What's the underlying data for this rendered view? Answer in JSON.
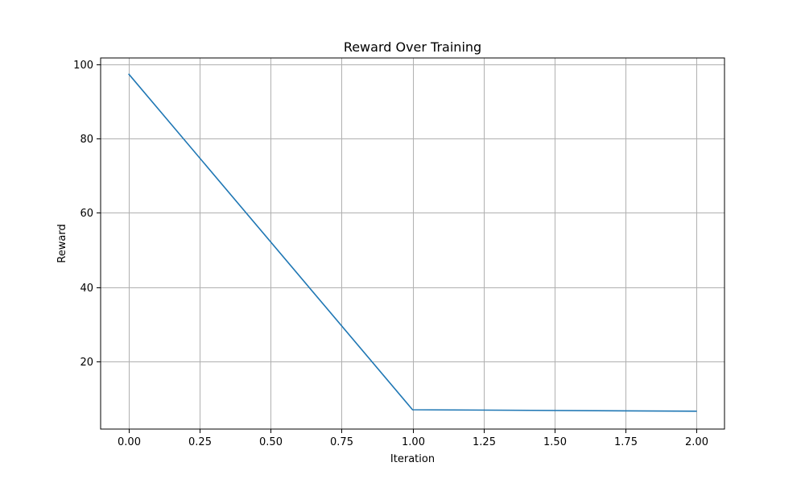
{
  "chart_data": {
    "type": "line",
    "title": "Reward Over Training",
    "xlabel": "Iteration",
    "ylabel": "Reward",
    "x": [
      0,
      1,
      2
    ],
    "series": [
      {
        "values": [
          97.3,
          7.0,
          6.6
        ],
        "color": "#1f77b4"
      }
    ],
    "xlim": [
      -0.1,
      2.1
    ],
    "ylim": [
      1.8,
      101.7
    ],
    "xticks": [
      0.0,
      0.25,
      0.5,
      0.75,
      1.0,
      1.25,
      1.5,
      1.75,
      2.0
    ],
    "xtick_labels": [
      "0.00",
      "0.25",
      "0.50",
      "0.75",
      "1.00",
      "1.25",
      "1.50",
      "1.75",
      "2.00"
    ],
    "yticks": [
      20,
      40,
      60,
      80,
      100
    ],
    "ytick_labels": [
      "20",
      "40",
      "60",
      "80",
      "100"
    ],
    "grid": true,
    "legend": false
  }
}
